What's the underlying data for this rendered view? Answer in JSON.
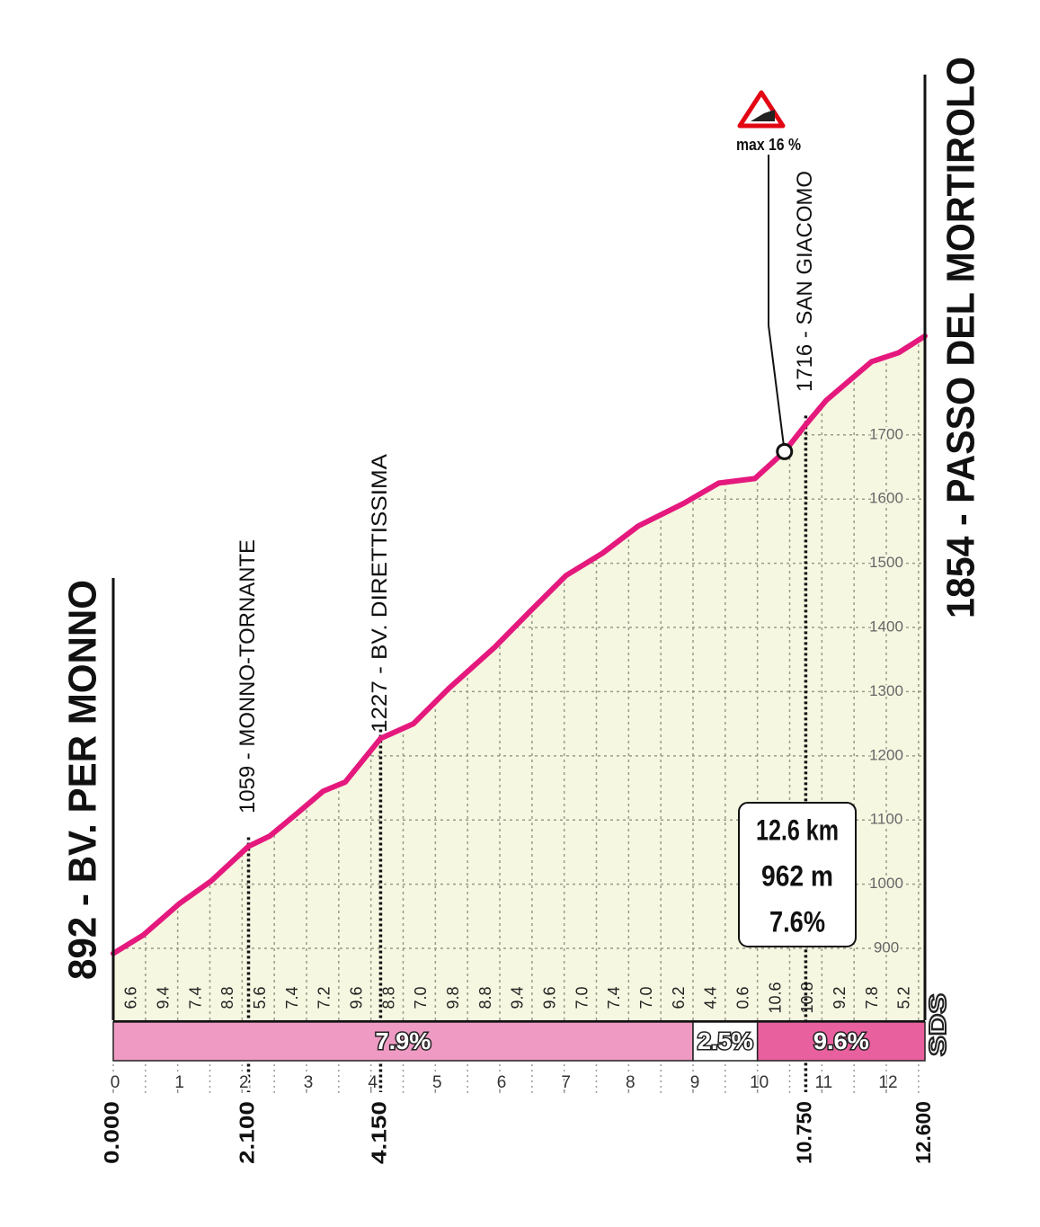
{
  "chart_data": {
    "type": "elevation-profile",
    "start_label": "892 - BV. PER MONNO",
    "finish_label": "1854 - PASSO DEL MORTIROLO",
    "x": [
      0,
      0.47,
      1.03,
      1.52,
      2.1,
      2.43,
      2.85,
      3.26,
      3.6,
      4.15,
      4.66,
      5.22,
      5.92,
      6.47,
      7.03,
      7.6,
      8.15,
      8.85,
      9.4,
      9.96,
      10.42,
      10.75,
      11.07,
      11.77,
      12.19,
      12.6
    ],
    "values": [
      892,
      921,
      970,
      1005,
      1059,
      1075,
      1110,
      1145,
      1159,
      1227,
      1250,
      1306,
      1369,
      1425,
      1481,
      1516,
      1558,
      1593,
      1625,
      1632,
      1674,
      1716,
      1754,
      1814,
      1828,
      1854
    ],
    "color": "#e5197d",
    "fill": "#f6f7e1",
    "xlim": [
      0,
      12.6
    ],
    "ylim": [
      788,
      1900
    ],
    "xticks": [
      0,
      1,
      2,
      3,
      4,
      5,
      6,
      7,
      8,
      9,
      10,
      11,
      12
    ],
    "yticks": [
      900,
      1000,
      1100,
      1200,
      1300,
      1400,
      1500,
      1600,
      1700
    ],
    "grid": true,
    "waypoints": [
      {
        "km": {
          "value": 2.1,
          "label": "2.100"
        },
        "label": "1059 - MONNO-TORNANTE"
      },
      {
        "km": {
          "value": 4.15,
          "label": "4.150"
        },
        "label": "1227 - BV. DIRETTISSIMA"
      },
      {
        "km": {
          "value": 10.75,
          "label": "10.750"
        },
        "label": "1716 - SAN GIACOMO"
      }
    ],
    "start_km": {
      "value": 0,
      "label": "0.000"
    },
    "finish_km": {
      "value": 12.6,
      "label": "12.600"
    },
    "gradients": {
      "bins": [
        0,
        0.5,
        1,
        1.5,
        2,
        2.5,
        3,
        3.5,
        4,
        4.5,
        5,
        5.5,
        6,
        6.5,
        7,
        7.5,
        8,
        8.5,
        9,
        9.5,
        10,
        10.5,
        11,
        11.5,
        12,
        12.5
      ],
      "values": [
        6.6,
        9.4,
        7.4,
        8.8,
        5.6,
        7.4,
        7.2,
        9.6,
        8.8,
        7.0,
        9.8,
        8.8,
        9.4,
        9.6,
        7.0,
        7.4,
        7.0,
        6.2,
        4.4,
        0.6,
        10.6,
        10.8,
        9.2,
        7.8,
        5.2
      ],
      "value_labels": [
        "6.6",
        "9.4",
        "7.4",
        "8.8",
        "5.6",
        "7.4",
        "7.2",
        "9.6",
        "8.8",
        "7.0",
        "9.8",
        "8.8",
        "9.4",
        "9.6",
        "7.0",
        "7.4",
        "7.0",
        "6.2",
        "4.4",
        "0.6",
        "10.6",
        "10.8",
        "9.2",
        "7.8",
        "5.2"
      ]
    },
    "segments": {
      "bins": [
        0,
        9,
        10,
        12.6
      ],
      "values": [
        7.9,
        2.5,
        9.6
      ],
      "value_labels": [
        "7.9%",
        "2.5%",
        "9.6%"
      ],
      "colors": [
        "#ee9ac3",
        "#ffffff",
        "#e8609e"
      ]
    },
    "max_gradient": {
      "label": "max 16 %",
      "x": 10.42
    },
    "summary": [
      "12.6 km",
      "962 m",
      "7.6%"
    ],
    "logo": "SDS"
  }
}
